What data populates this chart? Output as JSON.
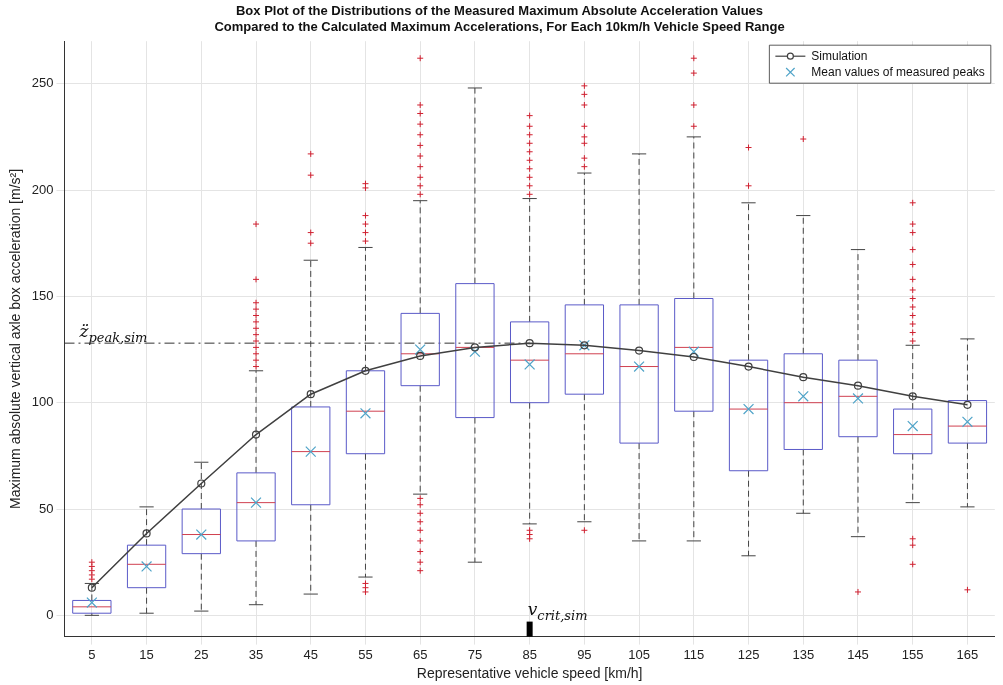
{
  "chart_data": {
    "type": "box",
    "title": "Box Plot of the Distributions of the Measured Maximum Absolute Acceleration Values\nCompared to the Calculated Maximum Accelerations, For Each 10km/h Vehicle Speed Range",
    "xlabel": "Representative vehicle speed [km/h]",
    "ylabel": "Maximum absolute vertical axle box acceleration [m/s²]",
    "categories": [
      "5",
      "15",
      "25",
      "35",
      "45",
      "55",
      "65",
      "75",
      "85",
      "95",
      "105",
      "115",
      "125",
      "135",
      "145",
      "155",
      "165"
    ],
    "ylim": [
      -10,
      270
    ],
    "yticks": [
      0,
      50,
      100,
      150,
      200,
      250
    ],
    "grid": true,
    "legend": "top right",
    "series": [
      {
        "type": "box",
        "color": "#5a5ac8",
        "boxes": [
          {
            "low": 0,
            "q1": 1,
            "median": 4,
            "q3": 7,
            "high": 15,
            "outliers": [
              17,
              19,
              21,
              23,
              25
            ]
          },
          {
            "low": 1,
            "q1": 13,
            "median": 24,
            "q3": 33,
            "high": 51
          },
          {
            "low": 2,
            "q1": 29,
            "median": 38,
            "q3": 50,
            "high": 72
          },
          {
            "low": 5,
            "q1": 35,
            "median": 53,
            "q3": 67,
            "high": 115,
            "outliers": [
              117,
              120,
              123,
              126,
              129,
              132,
              135,
              138,
              141,
              144,
              147,
              158,
              184
            ]
          },
          {
            "low": 10,
            "q1": 52,
            "median": 77,
            "q3": 98,
            "high": 167,
            "outliers": [
              175,
              180,
              207,
              217
            ]
          },
          {
            "low": 18,
            "q1": 76,
            "median": 96,
            "q3": 115,
            "high": 173,
            "outliers": [
              11,
              13,
              15,
              176,
              180,
              184,
              188,
              201,
              203
            ]
          },
          {
            "low": 57,
            "q1": 108,
            "median": 123,
            "q3": 142,
            "high": 195,
            "outliers": [
              21,
              25,
              30,
              35,
              40,
              44,
              48,
              52,
              55,
              198,
              202,
              206,
              211,
              216,
              221,
              226,
              231,
              236,
              240,
              262
            ]
          },
          {
            "low": 25,
            "q1": 93,
            "median": 126,
            "q3": 156,
            "high": 248
          },
          {
            "low": 43,
            "q1": 100,
            "median": 120,
            "q3": 138,
            "high": 196,
            "outliers": [
              36,
              38,
              40,
              198,
              202,
              206,
              210,
              214,
              218,
              222,
              226,
              230,
              235
            ]
          },
          {
            "low": 44,
            "q1": 104,
            "median": 123,
            "q3": 146,
            "high": 208,
            "outliers": [
              40,
              211,
              215,
              222,
              225,
              230,
              240,
              245,
              249
            ]
          },
          {
            "low": 35,
            "q1": 81,
            "median": 117,
            "q3": 146,
            "high": 217
          },
          {
            "low": 35,
            "q1": 96,
            "median": 126,
            "q3": 149,
            "high": 225,
            "outliers": [
              230,
              240,
              255,
              262
            ]
          },
          {
            "low": 28,
            "q1": 68,
            "median": 97,
            "q3": 120,
            "high": 194,
            "outliers": [
              202,
              220
            ]
          },
          {
            "low": 48,
            "q1": 78,
            "median": 100,
            "q3": 123,
            "high": 188,
            "outliers": [
              224
            ]
          },
          {
            "low": 37,
            "q1": 84,
            "median": 103,
            "q3": 120,
            "high": 172,
            "outliers": [
              11
            ]
          },
          {
            "low": 53,
            "q1": 76,
            "median": 85,
            "q3": 97,
            "high": 127,
            "outliers": [
              24,
              33,
              36,
              129,
              133,
              137,
              141,
              145,
              149,
              153,
              158,
              165,
              172,
              180,
              184,
              194
            ]
          },
          {
            "low": 51,
            "q1": 81,
            "median": 89,
            "q3": 101,
            "high": 130,
            "outliers": [
              12
            ]
          }
        ]
      },
      {
        "type": "line",
        "name": "Simulation",
        "color": "#404040",
        "marker": "circle",
        "values": [
          13,
          38.5,
          62,
          85,
          104,
          115,
          122,
          126,
          128,
          127,
          124.5,
          121.5,
          117,
          112,
          108,
          103,
          99
        ]
      },
      {
        "type": "scatter",
        "name": "Mean values of measured peaks",
        "color": "#4fa3c8",
        "marker": "cross",
        "values": [
          6,
          23,
          38,
          53,
          77,
          95,
          125,
          124,
          118,
          127,
          117,
          124,
          97,
          103,
          102,
          89,
          91
        ]
      }
    ],
    "ref_lines": [
      {
        "axis": "y",
        "value": 128,
        "label": "z̈$_{peak,sim}$",
        "line_style": "dashdot"
      },
      {
        "axis": "x",
        "value": "85",
        "label": "v$_{crit,sim}$",
        "color": "#000000"
      }
    ]
  }
}
